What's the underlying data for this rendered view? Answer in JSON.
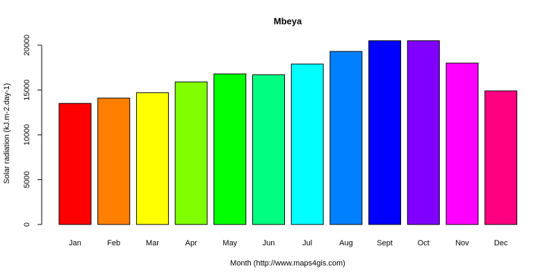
{
  "chart_data": {
    "type": "bar",
    "title": "Mbeya",
    "xlabel": "Month (http://www.maps4gis.com)",
    "ylabel": "Solar radiation (kJ.m-2.day-1)",
    "categories": [
      "Jan",
      "Feb",
      "Mar",
      "Apr",
      "May",
      "Jun",
      "Jul",
      "Aug",
      "Sept",
      "Oct",
      "Nov",
      "Dec"
    ],
    "values": [
      13500,
      14100,
      14700,
      15900,
      16800,
      16700,
      17900,
      19300,
      20500,
      20500,
      18000,
      14900
    ],
    "colors": [
      "#FF0000",
      "#FF8000",
      "#FFFF00",
      "#80FF00",
      "#00FF00",
      "#00FF80",
      "#00FFFF",
      "#0080FF",
      "#0000FF",
      "#8000FF",
      "#FF00FF",
      "#FF0080"
    ],
    "yticks": [
      0,
      5000,
      10000,
      15000,
      20000
    ],
    "ylim": [
      0,
      20500
    ],
    "grid": false,
    "legend": "none"
  }
}
